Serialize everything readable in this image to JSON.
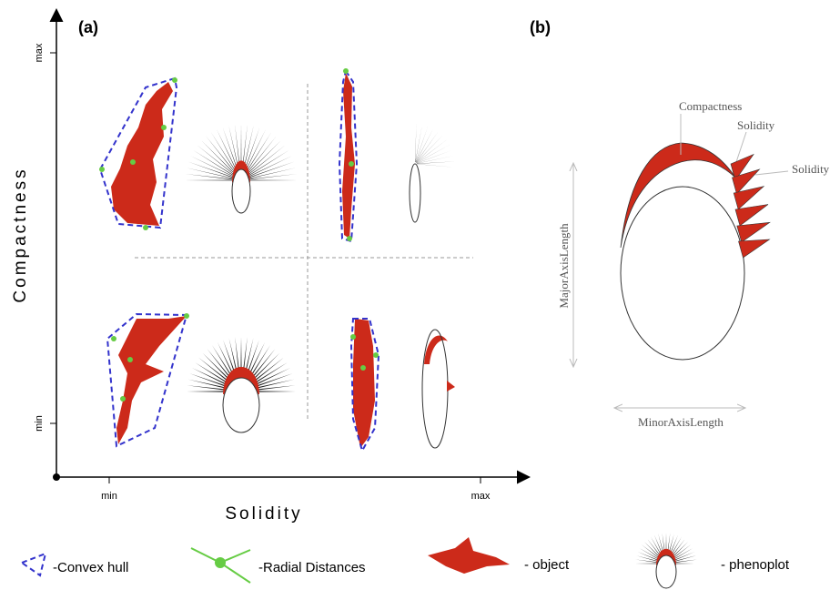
{
  "panel_a": {
    "label": "(a)",
    "y_axis": {
      "title": "Compactness",
      "max": "max",
      "min": "min"
    },
    "x_axis": {
      "title": "Solidity",
      "min": "min",
      "max": "max"
    }
  },
  "panel_b": {
    "label": "(b)",
    "compactness": "Compactness",
    "solidity_1": "Solidity",
    "solidity_2": "Solidity",
    "major_axis": "MajorAxisLength",
    "minor_axis": "MinorAxisLength"
  },
  "legend": [
    {
      "label": "-Convex hull"
    },
    {
      "label": "-Radial Distances"
    },
    {
      "label": "- object"
    },
    {
      "label": "- phenoplot"
    }
  ]
}
